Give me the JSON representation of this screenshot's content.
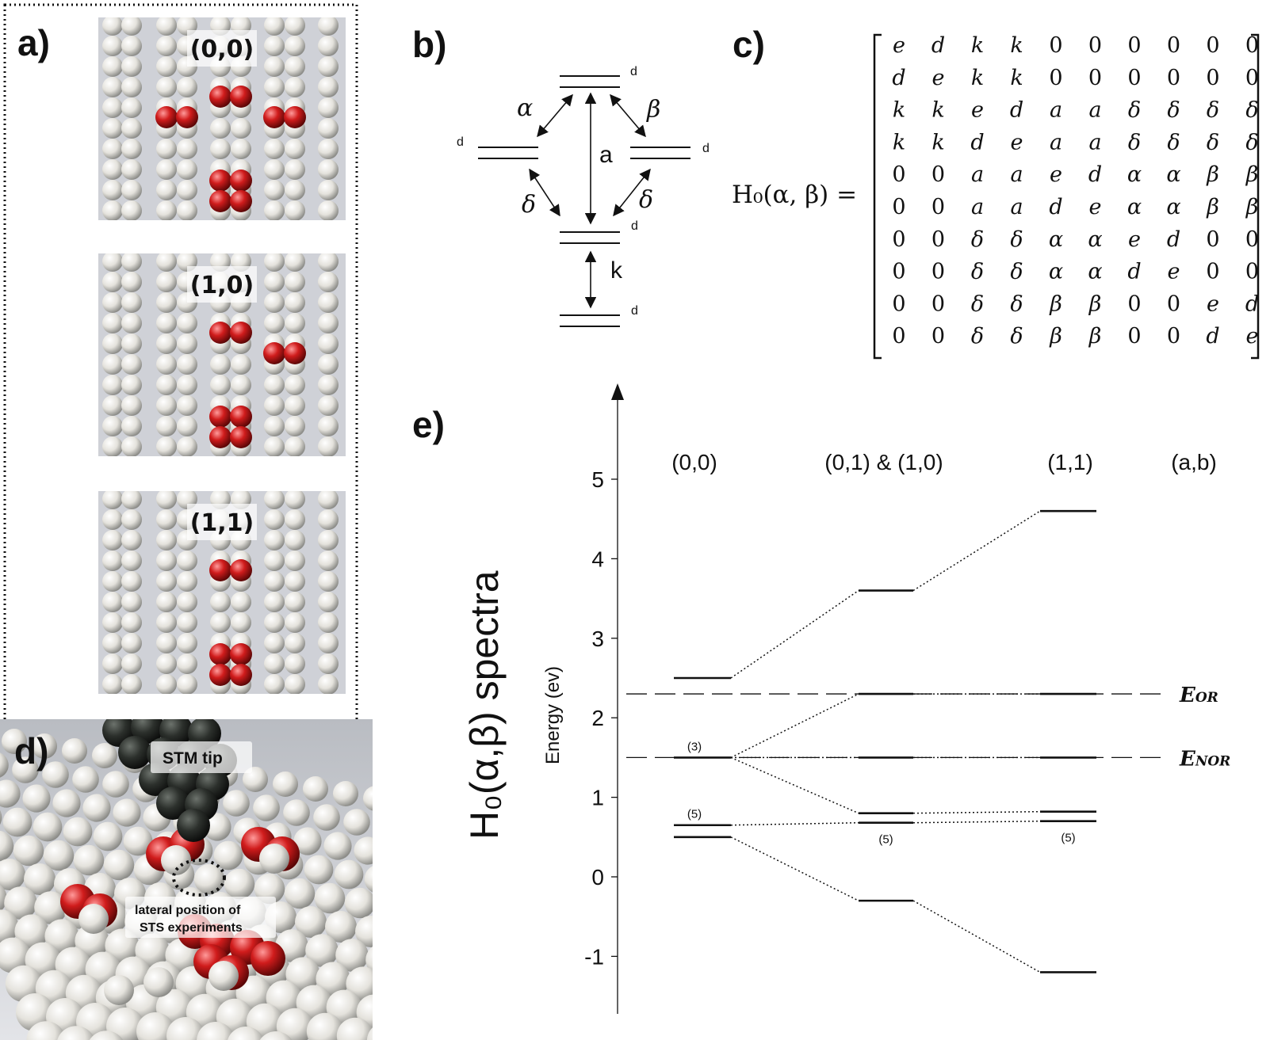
{
  "panels": {
    "a": {
      "letter": "a)",
      "configs": [
        "(0,0)",
        "(1,0)",
        "(1,1)"
      ]
    },
    "b": {
      "letter": "b)",
      "level_label": "d",
      "couplings": {
        "alpha": "α",
        "beta": "β",
        "delta": "δ",
        "a": "a",
        "k": "k"
      }
    },
    "c": {
      "letter": "c)",
      "lhs": "H₀(α, β) =",
      "matrix": [
        [
          "e",
          "d",
          "k",
          "k",
          "0",
          "0",
          "0",
          "0",
          "0",
          "0"
        ],
        [
          "d",
          "e",
          "k",
          "k",
          "0",
          "0",
          "0",
          "0",
          "0",
          "0"
        ],
        [
          "k",
          "k",
          "e",
          "d",
          "a",
          "a",
          "δ",
          "δ",
          "δ",
          "δ"
        ],
        [
          "k",
          "k",
          "d",
          "e",
          "a",
          "a",
          "δ",
          "δ",
          "δ",
          "δ"
        ],
        [
          "0",
          "0",
          "a",
          "a",
          "e",
          "d",
          "α",
          "α",
          "β",
          "β"
        ],
        [
          "0",
          "0",
          "a",
          "a",
          "d",
          "e",
          "α",
          "α",
          "β",
          "β"
        ],
        [
          "0",
          "0",
          "δ",
          "δ",
          "α",
          "α",
          "e",
          "d",
          "0",
          "0"
        ],
        [
          "0",
          "0",
          "δ",
          "δ",
          "α",
          "α",
          "d",
          "e",
          "0",
          "0"
        ],
        [
          "0",
          "0",
          "δ",
          "δ",
          "β",
          "β",
          "0",
          "0",
          "e",
          "d"
        ],
        [
          "0",
          "0",
          "δ",
          "δ",
          "β",
          "β",
          "0",
          "0",
          "d",
          "e"
        ]
      ]
    },
    "d": {
      "letter": "d)",
      "tip_label": "STM tip",
      "sts_label_line1": "lateral position of",
      "sts_label_line2": "STS experiments"
    },
    "e": {
      "letter": "e)",
      "ylabel_main": "H₀(α,β) spectra",
      "ylabel_sub": "Energy (ev)"
    }
  },
  "chart_data": {
    "type": "level-diagram",
    "ylabel": "Energy (ev)",
    "ylim": [
      -1.5,
      6.2
    ],
    "yticks": [
      -1,
      0,
      1,
      2,
      3,
      4,
      5
    ],
    "columns": [
      "(0,0)",
      "(0,1) & (1,0)",
      "(1,1)",
      "(a,b)"
    ],
    "levels": [
      {
        "column": "(0,0)",
        "energy": 2.5
      },
      {
        "column": "(0,0)",
        "energy": 1.5,
        "degeneracy": "(3)"
      },
      {
        "column": "(0,0)",
        "energy": 0.65,
        "degeneracy": "(5)"
      },
      {
        "column": "(0,0)",
        "energy": 0.5
      },
      {
        "column": "(0,1) & (1,0)",
        "energy": 3.6
      },
      {
        "column": "(0,1) & (1,0)",
        "energy": 2.3
      },
      {
        "column": "(0,1) & (1,0)",
        "energy": 1.5
      },
      {
        "column": "(0,1) & (1,0)",
        "energy": 0.8
      },
      {
        "column": "(0,1) & (1,0)",
        "energy": 0.68,
        "degeneracy": "(5)"
      },
      {
        "column": "(0,1) & (1,0)",
        "energy": -0.3
      },
      {
        "column": "(1,1)",
        "energy": 4.6
      },
      {
        "column": "(1,1)",
        "energy": 2.3
      },
      {
        "column": "(1,1)",
        "energy": 1.5
      },
      {
        "column": "(1,1)",
        "energy": 0.82
      },
      {
        "column": "(1,1)",
        "energy": 0.7,
        "degeneracy": "(5)"
      },
      {
        "column": "(1,1)",
        "energy": -1.2
      }
    ],
    "connections": [
      {
        "from": [
          "(0,0)",
          2.5
        ],
        "to": [
          "(0,1) & (1,0)",
          3.6
        ]
      },
      {
        "from": [
          "(0,1) & (1,0)",
          3.6
        ],
        "to": [
          "(1,1)",
          4.6
        ]
      },
      {
        "from": [
          "(0,0)",
          1.5
        ],
        "to": [
          "(0,1) & (1,0)",
          2.3
        ]
      },
      {
        "from": [
          "(0,1) & (1,0)",
          2.3
        ],
        "to": [
          "(1,1)",
          2.3
        ]
      },
      {
        "from": [
          "(0,0)",
          1.5
        ],
        "to": [
          "(0,1) & (1,0)",
          1.5
        ]
      },
      {
        "from": [
          "(0,1) & (1,0)",
          1.5
        ],
        "to": [
          "(1,1)",
          1.5
        ]
      },
      {
        "from": [
          "(0,0)",
          1.5
        ],
        "to": [
          "(0,1) & (1,0)",
          0.8
        ]
      },
      {
        "from": [
          "(0,1) & (1,0)",
          0.8
        ],
        "to": [
          "(1,1)",
          0.82
        ]
      },
      {
        "from": [
          "(0,0)",
          0.65
        ],
        "to": [
          "(0,1) & (1,0)",
          0.68
        ]
      },
      {
        "from": [
          "(0,1) & (1,0)",
          0.68
        ],
        "to": [
          "(1,1)",
          0.7
        ]
      },
      {
        "from": [
          "(0,0)",
          0.5
        ],
        "to": [
          "(0,1) & (1,0)",
          -0.3
        ]
      },
      {
        "from": [
          "(0,1) & (1,0)",
          -0.3
        ],
        "to": [
          "(1,1)",
          -1.2
        ]
      }
    ],
    "reference_lines": [
      {
        "label": "E",
        "subscript": "OR",
        "energy": 2.3
      },
      {
        "label": "E",
        "subscript": "NOR",
        "energy": 1.5
      }
    ],
    "colors": {
      "atom_white": "#e6e4de",
      "atom_red": "#c41e1e",
      "surface": "#d7d8dc",
      "tip": "#2a2d2a"
    }
  }
}
